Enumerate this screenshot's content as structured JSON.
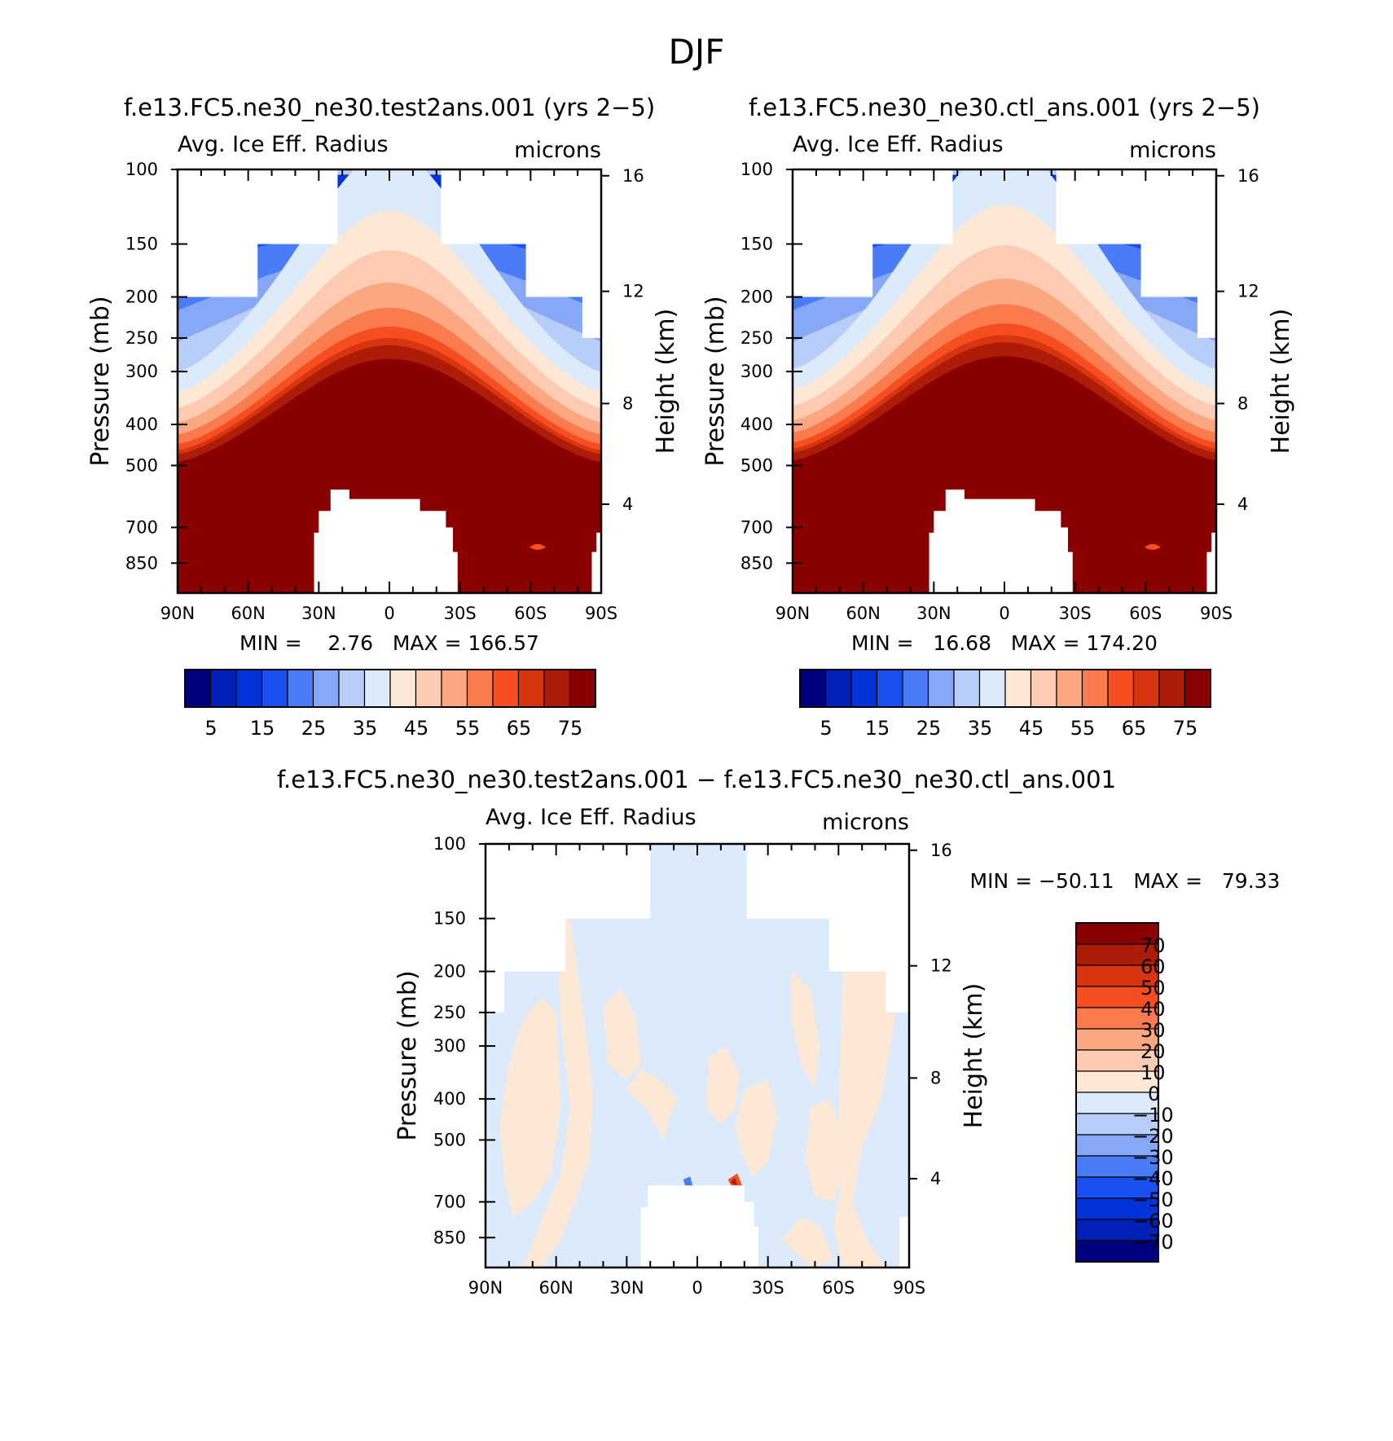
{
  "figure": {
    "title": "DJF"
  },
  "colors": {
    "abs_fill": [
      "#00007f",
      "#0020b6",
      "#0033d9",
      "#1a4ff2",
      "#4a7cf7",
      "#86a8f7",
      "#b8cef9",
      "#dcebfb",
      "#fde8d6",
      "#fccbb2",
      "#fba882",
      "#fa7c4e",
      "#f64e20",
      "#d73510",
      "#ad1c07",
      "#8a0000"
    ],
    "diff_fill": [
      "#00007f",
      "#0020b6",
      "#0033d9",
      "#1a4ff2",
      "#4a7cf7",
      "#86a8f7",
      "#b8cef9",
      "#dcebfb",
      "#fde8d6",
      "#fccbb2",
      "#fba882",
      "#fa7c4e",
      "#f64e20",
      "#d73510",
      "#ad1c07",
      "#8a0000"
    ]
  },
  "chart_data": [
    {
      "type": "contour",
      "case_title": "f.e13.FC5.ne30_ne30.test2ans.001 (yrs 2−5)",
      "variable": "Avg. Ice Eff. Radius",
      "units": "microns",
      "ylabel": "Pressure (mb)",
      "y2label": "Height (km)",
      "xticks": [
        "90N",
        "60N",
        "30N",
        "0",
        "30S",
        "60S",
        "90S"
      ],
      "yticks": [
        "100",
        "150",
        "200",
        "250",
        "300",
        "400",
        "500",
        "700",
        "850"
      ],
      "y2ticks": [
        "16",
        "12",
        "8",
        "4"
      ],
      "stats": "MIN =    2.76   MAX = 166.57",
      "colorbar_labels": [
        "5",
        "15",
        "25",
        "35",
        "45",
        "55",
        "65",
        "75"
      ],
      "colorbar_levels": [
        0,
        5,
        10,
        15,
        20,
        25,
        30,
        35,
        40,
        45,
        50,
        55,
        60,
        65,
        70,
        75
      ],
      "min": 2.76,
      "max": 166.57
    },
    {
      "type": "contour",
      "case_title": "f.e13.FC5.ne30_ne30.ctl_ans.001 (yrs 2−5)",
      "variable": "Avg. Ice Eff. Radius",
      "units": "microns",
      "ylabel": "Pressure (mb)",
      "y2label": "Height (km)",
      "xticks": [
        "90N",
        "60N",
        "30N",
        "0",
        "30S",
        "60S",
        "90S"
      ],
      "yticks": [
        "100",
        "150",
        "200",
        "250",
        "300",
        "400",
        "500",
        "700",
        "850"
      ],
      "y2ticks": [
        "16",
        "12",
        "8",
        "4"
      ],
      "stats": "MIN =   16.68   MAX = 174.20",
      "colorbar_labels": [
        "5",
        "15",
        "25",
        "35",
        "45",
        "55",
        "65",
        "75"
      ],
      "colorbar_levels": [
        0,
        5,
        10,
        15,
        20,
        25,
        30,
        35,
        40,
        45,
        50,
        55,
        60,
        65,
        70,
        75
      ],
      "min": 16.68,
      "max": 174.2
    },
    {
      "type": "contour",
      "case_title": "f.e13.FC5.ne30_ne30.test2ans.001 − f.e13.FC5.ne30_ne30.ctl_ans.001",
      "variable": "Avg. Ice Eff. Radius",
      "units": "microns",
      "ylabel": "Pressure (mb)",
      "y2label": "Height (km)",
      "xticks": [
        "90N",
        "60N",
        "30N",
        "0",
        "30S",
        "60S",
        "90S"
      ],
      "yticks": [
        "100",
        "150",
        "200",
        "250",
        "300",
        "400",
        "500",
        "700",
        "850"
      ],
      "y2ticks": [
        "16",
        "12",
        "8",
        "4"
      ],
      "stats": "MIN = −50.11   MAX =   79.33",
      "colorbar_labels": [
        "70",
        "60",
        "50",
        "40",
        "30",
        "20",
        "10",
        "0",
        "−10",
        "−20",
        "−30",
        "−40",
        "−50",
        "−60",
        "−70"
      ],
      "colorbar_levels": [
        -70,
        -60,
        -50,
        -40,
        -30,
        -20,
        -10,
        0,
        10,
        20,
        30,
        40,
        50,
        60,
        70
      ],
      "min": -50.11,
      "max": 79.33
    }
  ]
}
